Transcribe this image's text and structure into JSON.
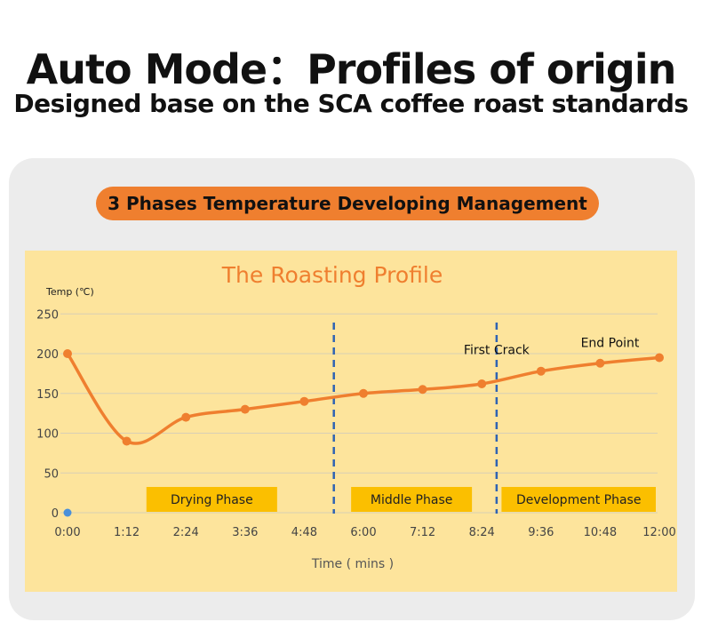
{
  "header": {
    "title": "Auto Mode：Profiles of origin",
    "subtitle": "Designed base on the SCA coffee roast standards"
  },
  "banner": {
    "label": "3 Phases Temperature Developing Management"
  },
  "colors": {
    "accent": "#ef7f2f",
    "chart_background": "#fde49c",
    "phase_label_fill": "#fbbf00",
    "divider": "#2f63b3",
    "start_dot": "#4a90d9"
  },
  "chart_data": {
    "type": "line",
    "title": "The Roasting Profile",
    "ylabel": "Temp (℃)",
    "xlabel": "Time ( mins )",
    "ylim": [
      0,
      250
    ],
    "xlim_min": [
      0,
      12
    ],
    "y_ticks": [
      "0",
      "50",
      "100",
      "150",
      "200",
      "250"
    ],
    "x_ticks": [
      "0:00",
      "1:12",
      "2:24",
      "3:36",
      "4:48",
      "6:00",
      "7:12",
      "8:24",
      "9:36",
      "10:48",
      "12:00"
    ],
    "grid": true,
    "series": [
      {
        "x": [
          0,
          1.2,
          2.4,
          3.6,
          4.8,
          6.0,
          7.2,
          8.4,
          9.6,
          10.8,
          12.0
        ],
        "y": [
          200,
          90,
          120,
          130,
          140,
          150,
          155,
          162,
          178,
          188,
          195
        ],
        "x_min": [
          0,
          1.2,
          2.4,
          3.6,
          4.8,
          6.0,
          7.2,
          8.4,
          9.6,
          10.8,
          12.0
        ]
      }
    ],
    "points": [
      {
        "t": 0.0,
        "temp": 200
      },
      {
        "t": 1.2,
        "temp": 90
      },
      {
        "t": 2.4,
        "temp": 120
      },
      {
        "t": 3.6,
        "temp": 130
      },
      {
        "t": 4.8,
        "temp": 140
      },
      {
        "t": 6.0,
        "temp": 150
      },
      {
        "t": 7.2,
        "temp": 155
      },
      {
        "t": 8.4,
        "temp": 162
      },
      {
        "t": 9.6,
        "temp": 178
      },
      {
        "t": 10.8,
        "temp": 188
      },
      {
        "t": 12.0,
        "temp": 195
      }
    ],
    "start_marker": {
      "t": 0,
      "temp": 0
    },
    "phase_dividers_min": [
      5.4,
      8.7
    ],
    "phases": [
      {
        "label": "Drying Phase",
        "start": 1.6,
        "end": 4.25
      },
      {
        "label": "Middle Phase",
        "start": 5.75,
        "end": 8.2
      },
      {
        "label": "Development Phase",
        "start": 8.8,
        "end": 12.6
      }
    ],
    "annotations": [
      {
        "label": "First Crack",
        "t": 8.7,
        "temp": 205
      },
      {
        "label": "End Point",
        "t": 11.0,
        "temp": 214
      }
    ]
  }
}
